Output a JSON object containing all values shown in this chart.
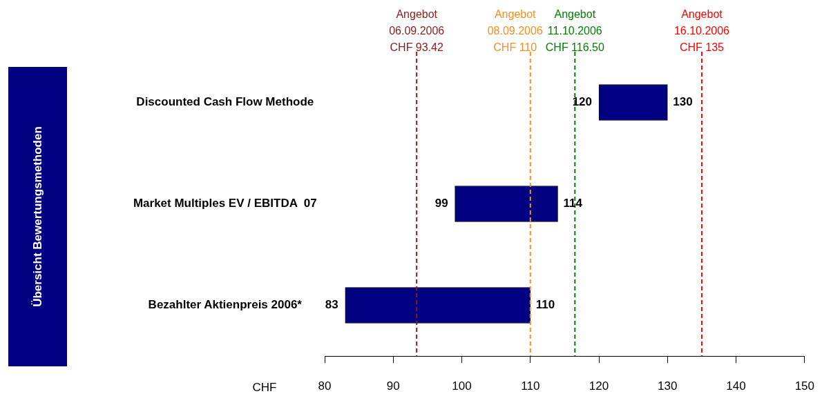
{
  "chart_data": {
    "type": "bar",
    "orientation": "horizontal",
    "categories": [
      "Discounted Cash Flow Methode",
      "Market Multiples EV / EBITDA  07",
      "Bezahlter Aktienpreis 2006*"
    ],
    "base": [
      120,
      99,
      83
    ],
    "values": [
      10,
      15,
      27
    ],
    "color": "#000080",
    "xlim": [
      80,
      150
    ],
    "xticks": [
      80,
      90,
      100,
      110,
      120,
      130,
      140,
      150
    ],
    "xlabel": "CHF",
    "grid": false,
    "legend": false,
    "ref_lines": [
      {
        "axis": "x",
        "value": 93.42,
        "label": "Angebot\n06.09.2006\nCHF 93.42",
        "color": "#8b1a1a",
        "line_style": "dashed"
      },
      {
        "axis": "x",
        "value": 110,
        "label": "Angebot\n08.09.2006\nCHF 110",
        "color": "#ff8c1a",
        "line_style": "dashed"
      },
      {
        "axis": "x",
        "value": 116.5,
        "label": "Angebot\n11.10.2006\nCHF 116.50",
        "color": "#008000",
        "line_style": "dashed"
      },
      {
        "axis": "x",
        "value": 135,
        "label": "Angebot\n16.10.2006\nCHF 135",
        "color": "#ff0000",
        "line_style": "dashed"
      }
    ],
    "annotations": [
      "Übersicht Bewertungsmethoden",
      {
        "text": "120",
        "x": 120,
        "y": "Discounted Cash Flow Methode"
      },
      {
        "text": "130",
        "x": 130,
        "y": "Discounted Cash Flow Methode"
      },
      {
        "text": "99",
        "x": 99,
        "y": "Market Multiples EV / EBITDA  07"
      },
      {
        "text": "114",
        "x": 114,
        "y": "Market Multiples EV / EBITDA  07"
      },
      {
        "text": "83",
        "x": 83,
        "y": "Bezahlter Aktienpreis 2006*"
      },
      {
        "text": "110",
        "x": 110,
        "y": "Bezahlter Aktienpreis 2006*"
      }
    ]
  }
}
